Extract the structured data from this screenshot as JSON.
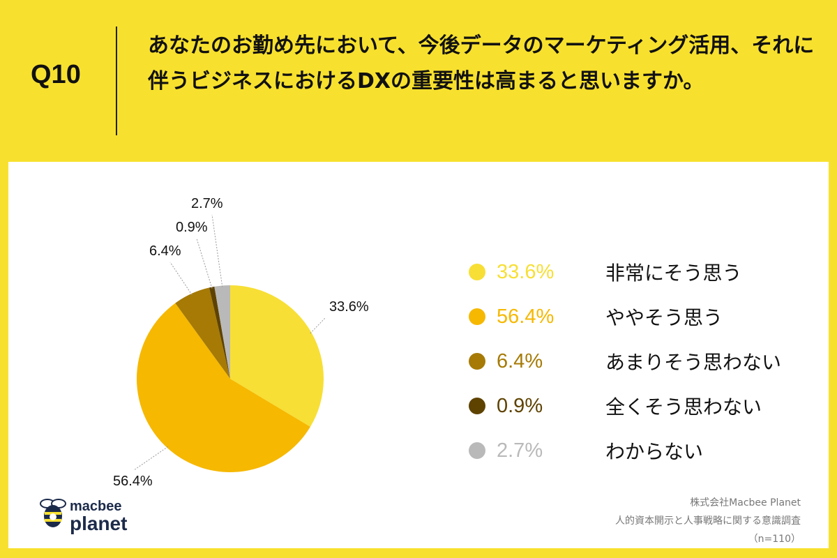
{
  "header": {
    "q_label": "Q10",
    "question": "あなたのお勤め先において、今後データのマーケティング活用、それに伴うビジネスにおけるDXの重要性は高まると思いますか。"
  },
  "chart_data": {
    "type": "pie",
    "title": "",
    "start_angle_deg": 0,
    "direction": "clockwise",
    "slices": [
      {
        "label": "非常にそう思う",
        "value": 33.6,
        "display": "33.6%",
        "color": "#F7DF35"
      },
      {
        "label": "ややそう思う",
        "value": 56.4,
        "display": "56.4%",
        "color": "#F6B800"
      },
      {
        "label": "あまりそう思わない",
        "value": 6.4,
        "display": "6.4%",
        "color": "#A67A05"
      },
      {
        "label": "全くそう思わない",
        "value": 0.9,
        "display": "0.9%",
        "color": "#5E4200"
      },
      {
        "label": "わからない",
        "value": 2.7,
        "display": "2.7%",
        "color": "#B9B9B9"
      }
    ],
    "legend_placement": "right"
  },
  "footer": {
    "company": "株式会社Macbee Planet",
    "survey": "人的資本開示と人事戦略に関する意識調査",
    "sample": "（n=110）"
  },
  "logo": {
    "top": "macbee",
    "bottom": "planet",
    "icon": "bee-icon"
  }
}
